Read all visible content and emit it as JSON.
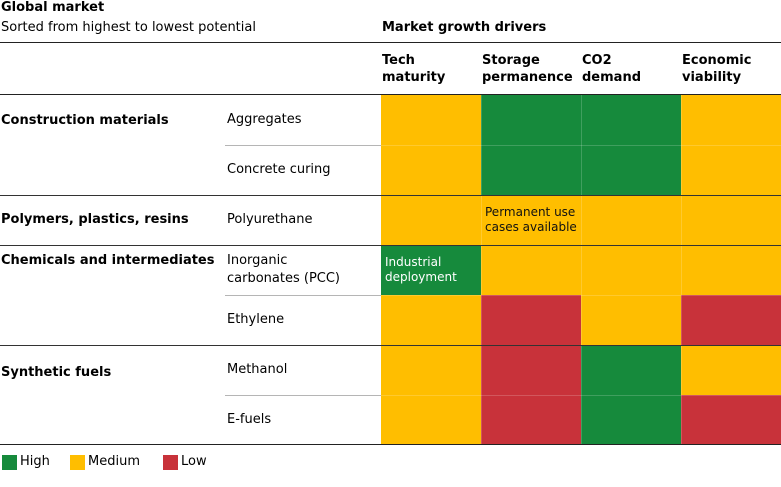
{
  "header": {
    "title": "Global market",
    "subtitle": "Sorted from highest to lowest potential",
    "drivers_title": "Market growth drivers"
  },
  "colors": {
    "High": "#168A3C",
    "Medium": "#FFBE00",
    "Low": "#C8323A"
  },
  "chart_data": {
    "type": "heatmap",
    "title": "Global market",
    "subtitle": "Sorted from highest to lowest potential",
    "columns_title": "Market growth drivers",
    "columns": [
      [
        "Tech",
        "maturity"
      ],
      [
        "Storage",
        "permanence"
      ],
      [
        "CO2",
        "demand"
      ],
      [
        "Economic",
        "viability"
      ]
    ],
    "groups": [
      {
        "name": "Construction materials",
        "rows": [
          0,
          1
        ]
      },
      {
        "name": "Polymers, plastics, resins",
        "rows": [
          2
        ]
      },
      {
        "name": "Chemicals and intermediates",
        "rows": [
          3,
          4
        ]
      },
      {
        "name": "Synthetic fuels",
        "rows": [
          5,
          6
        ]
      }
    ],
    "rows": [
      {
        "name": [
          "Aggregates"
        ],
        "values": [
          "Medium",
          "High",
          "High",
          "Medium"
        ]
      },
      {
        "name": [
          "Concrete curing"
        ],
        "values": [
          "Medium",
          "High",
          "High",
          "Medium"
        ]
      },
      {
        "name": [
          "Polyurethane"
        ],
        "values": [
          "Medium",
          "Medium",
          "Medium",
          "Medium"
        ]
      },
      {
        "name": [
          "Inorganic",
          "carbonates (PCC)"
        ],
        "values": [
          "High",
          "Medium",
          "Medium",
          "Medium"
        ]
      },
      {
        "name": [
          "Ethylene"
        ],
        "values": [
          "Medium",
          "Low",
          "Medium",
          "Low"
        ]
      },
      {
        "name": [
          "Methanol"
        ],
        "values": [
          "Medium",
          "Low",
          "High",
          "Medium"
        ]
      },
      {
        "name": [
          "E-fuels"
        ],
        "values": [
          "Medium",
          "Low",
          "High",
          "Low"
        ]
      }
    ],
    "annotations": [
      {
        "row": 2,
        "col": 1,
        "text": [
          "Permanent use",
          "cases available"
        ]
      },
      {
        "row": 3,
        "col": 0,
        "text": [
          "Industrial",
          "deployment"
        ]
      }
    ],
    "legend": [
      "High",
      "Medium",
      "Low"
    ]
  }
}
